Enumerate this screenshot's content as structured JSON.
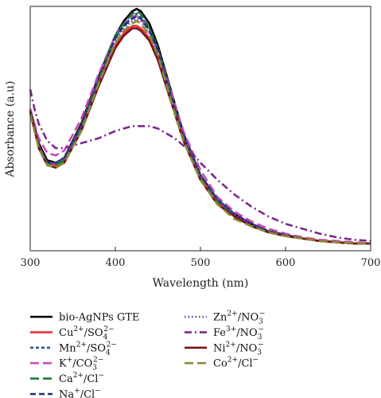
{
  "chart_data": {
    "type": "line",
    "xlabel": "Wavelength (nm)",
    "ylabel": "Absorbance (a.u)",
    "xlim": [
      300,
      700
    ],
    "ylim": [
      0,
      1.0
    ],
    "xticks": [
      "300",
      "400",
      "500",
      "600",
      "700"
    ],
    "grid": false,
    "legend_position": "bottom",
    "series": [
      {
        "name": "bio-AgNPs GTE",
        "label_parts": [
          [
            "bio-AgNPs GTE",
            ""
          ]
        ],
        "color": "#000000",
        "dash": "solid",
        "x": [
          300,
          310,
          320,
          330,
          340,
          360,
          380,
          400,
          410,
          420,
          425,
          430,
          440,
          450,
          460,
          470,
          480,
          500,
          520,
          540,
          560,
          580,
          600,
          620,
          640,
          660,
          680,
          700
        ],
        "y": [
          0.58,
          0.44,
          0.37,
          0.36,
          0.38,
          0.52,
          0.71,
          0.88,
          0.94,
          0.98,
          0.99,
          0.98,
          0.93,
          0.84,
          0.72,
          0.6,
          0.48,
          0.31,
          0.21,
          0.15,
          0.11,
          0.08,
          0.065,
          0.05,
          0.04,
          0.035,
          0.03,
          0.03
        ]
      },
      {
        "name": "Cu2+/SO42−",
        "label_parts": [
          [
            "Cu",
            "",
            ""
          ],
          [
            "2+",
            "sup"
          ],
          [
            "/SO",
            ""
          ],
          [
            "4",
            "sub-sup",
            "2−"
          ]
        ],
        "color": "#e8303a",
        "dash": "solid",
        "x": [
          300,
          310,
          320,
          330,
          340,
          360,
          380,
          400,
          410,
          420,
          425,
          430,
          440,
          450,
          460,
          470,
          480,
          500,
          520,
          540,
          560,
          580,
          600,
          620,
          640,
          660,
          680,
          700
        ],
        "y": [
          0.57,
          0.43,
          0.36,
          0.35,
          0.37,
          0.5,
          0.68,
          0.84,
          0.89,
          0.92,
          0.92,
          0.91,
          0.87,
          0.79,
          0.68,
          0.57,
          0.46,
          0.3,
          0.2,
          0.14,
          0.1,
          0.08,
          0.06,
          0.05,
          0.04,
          0.035,
          0.03,
          0.03
        ]
      },
      {
        "name": "Mn2+/SO42−",
        "label_parts": [
          [
            "Mn",
            ""
          ],
          [
            "2+",
            "sup"
          ],
          [
            "/SO",
            ""
          ],
          [
            "4",
            "sub-sup",
            "2−"
          ]
        ],
        "color": "#2e5a8c",
        "dash": "densedash",
        "x": [
          300,
          310,
          320,
          330,
          340,
          360,
          380,
          400,
          410,
          420,
          425,
          430,
          440,
          450,
          460,
          470,
          480,
          500,
          520,
          540,
          560,
          580,
          600,
          620,
          640,
          660,
          680,
          700
        ],
        "y": [
          0.57,
          0.43,
          0.36,
          0.36,
          0.38,
          0.51,
          0.7,
          0.87,
          0.92,
          0.96,
          0.97,
          0.96,
          0.91,
          0.83,
          0.71,
          0.59,
          0.47,
          0.31,
          0.21,
          0.15,
          0.11,
          0.08,
          0.065,
          0.05,
          0.04,
          0.035,
          0.03,
          0.03
        ]
      },
      {
        "name": "K+/CO32−",
        "label_parts": [
          [
            "K",
            ""
          ],
          [
            "+",
            "sup"
          ],
          [
            "/CO",
            ""
          ],
          [
            "3",
            "sub-sup",
            "2−"
          ]
        ],
        "color": "#c64fb0",
        "dash": "longdash",
        "x": [
          300,
          310,
          320,
          330,
          340,
          360,
          380,
          400,
          410,
          420,
          425,
          430,
          440,
          450,
          460,
          470,
          480,
          500,
          520,
          540,
          560,
          580,
          600,
          620,
          640,
          660,
          680,
          700
        ],
        "y": [
          0.58,
          0.46,
          0.4,
          0.39,
          0.41,
          0.54,
          0.72,
          0.88,
          0.93,
          0.96,
          0.96,
          0.95,
          0.9,
          0.82,
          0.71,
          0.6,
          0.49,
          0.33,
          0.22,
          0.16,
          0.12,
          0.09,
          0.07,
          0.055,
          0.045,
          0.04,
          0.035,
          0.03
        ]
      },
      {
        "name": "Ca2+/Cl−",
        "label_parts": [
          [
            "Ca",
            ""
          ],
          [
            "2+",
            "sup"
          ],
          [
            "/Cl",
            ""
          ],
          [
            "−",
            "sup"
          ]
        ],
        "color": "#1f7a3a",
        "dash": "longdash",
        "x": [
          300,
          310,
          320,
          330,
          340,
          360,
          380,
          400,
          410,
          420,
          425,
          430,
          440,
          450,
          460,
          470,
          480,
          500,
          520,
          540,
          560,
          580,
          600,
          620,
          640,
          660,
          680,
          700
        ],
        "y": [
          0.57,
          0.43,
          0.36,
          0.35,
          0.37,
          0.51,
          0.7,
          0.88,
          0.93,
          0.97,
          0.98,
          0.97,
          0.91,
          0.82,
          0.7,
          0.58,
          0.46,
          0.3,
          0.2,
          0.14,
          0.1,
          0.08,
          0.06,
          0.05,
          0.04,
          0.035,
          0.03,
          0.03
        ]
      },
      {
        "name": "Na+/Cl−",
        "label_parts": [
          [
            "Na",
            ""
          ],
          [
            "+",
            "sup"
          ],
          [
            "/Cl",
            ""
          ],
          [
            "−",
            "sup"
          ]
        ],
        "color": "#1d2f7a",
        "dash": "dash",
        "x": [
          300,
          310,
          320,
          330,
          340,
          360,
          380,
          400,
          410,
          420,
          425,
          430,
          440,
          450,
          460,
          470,
          480,
          500,
          520,
          540,
          560,
          580,
          600,
          620,
          640,
          660,
          680,
          700
        ],
        "y": [
          0.57,
          0.43,
          0.36,
          0.36,
          0.38,
          0.51,
          0.7,
          0.87,
          0.92,
          0.95,
          0.96,
          0.95,
          0.9,
          0.82,
          0.7,
          0.58,
          0.47,
          0.31,
          0.21,
          0.15,
          0.11,
          0.08,
          0.065,
          0.05,
          0.04,
          0.035,
          0.03,
          0.03
        ]
      },
      {
        "name": "Zn2+/NO3−",
        "label_parts": [
          [
            "Zn",
            ""
          ],
          [
            "2+",
            "sup"
          ],
          [
            "/NO",
            ""
          ],
          [
            "3",
            "sub-sup",
            "−"
          ]
        ],
        "color": "#5a3fb5",
        "dash": "dot",
        "x": [
          300,
          310,
          320,
          330,
          340,
          360,
          380,
          400,
          410,
          420,
          425,
          430,
          440,
          450,
          460,
          470,
          480,
          500,
          520,
          540,
          560,
          580,
          600,
          620,
          640,
          660,
          680,
          700
        ],
        "y": [
          0.57,
          0.43,
          0.36,
          0.36,
          0.38,
          0.51,
          0.7,
          0.86,
          0.91,
          0.94,
          0.95,
          0.94,
          0.89,
          0.81,
          0.7,
          0.58,
          0.47,
          0.31,
          0.21,
          0.15,
          0.11,
          0.08,
          0.065,
          0.05,
          0.04,
          0.035,
          0.03,
          0.03
        ]
      },
      {
        "name": "Fe3+/NO3−",
        "label_parts": [
          [
            "Fe",
            ""
          ],
          [
            "3+",
            "sup"
          ],
          [
            "/NO",
            ""
          ],
          [
            "3",
            "sub-sup",
            "−"
          ]
        ],
        "color": "#7a2a8c",
        "dash": "dashdot",
        "x": [
          300,
          305,
          310,
          320,
          330,
          340,
          350,
          360,
          380,
          400,
          420,
          440,
          450,
          460,
          470,
          480,
          490,
          500,
          520,
          540,
          560,
          580,
          600,
          620,
          640,
          660,
          680,
          700
        ],
        "y": [
          0.66,
          0.58,
          0.52,
          0.45,
          0.42,
          0.42,
          0.43,
          0.44,
          0.46,
          0.49,
          0.51,
          0.51,
          0.5,
          0.48,
          0.46,
          0.43,
          0.4,
          0.36,
          0.29,
          0.23,
          0.18,
          0.14,
          0.11,
          0.09,
          0.07,
          0.055,
          0.045,
          0.04
        ]
      },
      {
        "name": "Ni2+/NO3−",
        "label_parts": [
          [
            "Ni",
            ""
          ],
          [
            "2+",
            "sup"
          ],
          [
            "/NO",
            ""
          ],
          [
            "3",
            "sub-sup",
            "−"
          ]
        ],
        "color": "#7a1414",
        "dash": "solid",
        "x": [
          300,
          310,
          320,
          330,
          340,
          360,
          380,
          400,
          410,
          420,
          425,
          430,
          440,
          450,
          460,
          470,
          480,
          500,
          520,
          540,
          560,
          580,
          600,
          620,
          640,
          660,
          680,
          700
        ],
        "y": [
          0.57,
          0.42,
          0.35,
          0.34,
          0.36,
          0.49,
          0.67,
          0.83,
          0.88,
          0.91,
          0.91,
          0.9,
          0.86,
          0.78,
          0.67,
          0.56,
          0.45,
          0.29,
          0.19,
          0.14,
          0.1,
          0.075,
          0.06,
          0.05,
          0.04,
          0.035,
          0.03,
          0.03
        ]
      },
      {
        "name": "Co2+/Cl−",
        "label_parts": [
          [
            "Co",
            ""
          ],
          [
            "2+",
            "sup"
          ],
          [
            "/Cl",
            ""
          ],
          [
            "−",
            "sup"
          ]
        ],
        "color": "#8c8a32",
        "dash": "longdash",
        "x": [
          300,
          310,
          320,
          330,
          340,
          360,
          380,
          400,
          410,
          420,
          425,
          430,
          440,
          450,
          460,
          470,
          480,
          500,
          520,
          540,
          560,
          580,
          600,
          620,
          640,
          660,
          680,
          700
        ],
        "y": [
          0.56,
          0.42,
          0.35,
          0.34,
          0.36,
          0.49,
          0.68,
          0.85,
          0.9,
          0.93,
          0.94,
          0.93,
          0.88,
          0.8,
          0.68,
          0.56,
          0.45,
          0.29,
          0.19,
          0.13,
          0.1,
          0.075,
          0.06,
          0.05,
          0.04,
          0.035,
          0.03,
          0.03
        ]
      }
    ]
  }
}
